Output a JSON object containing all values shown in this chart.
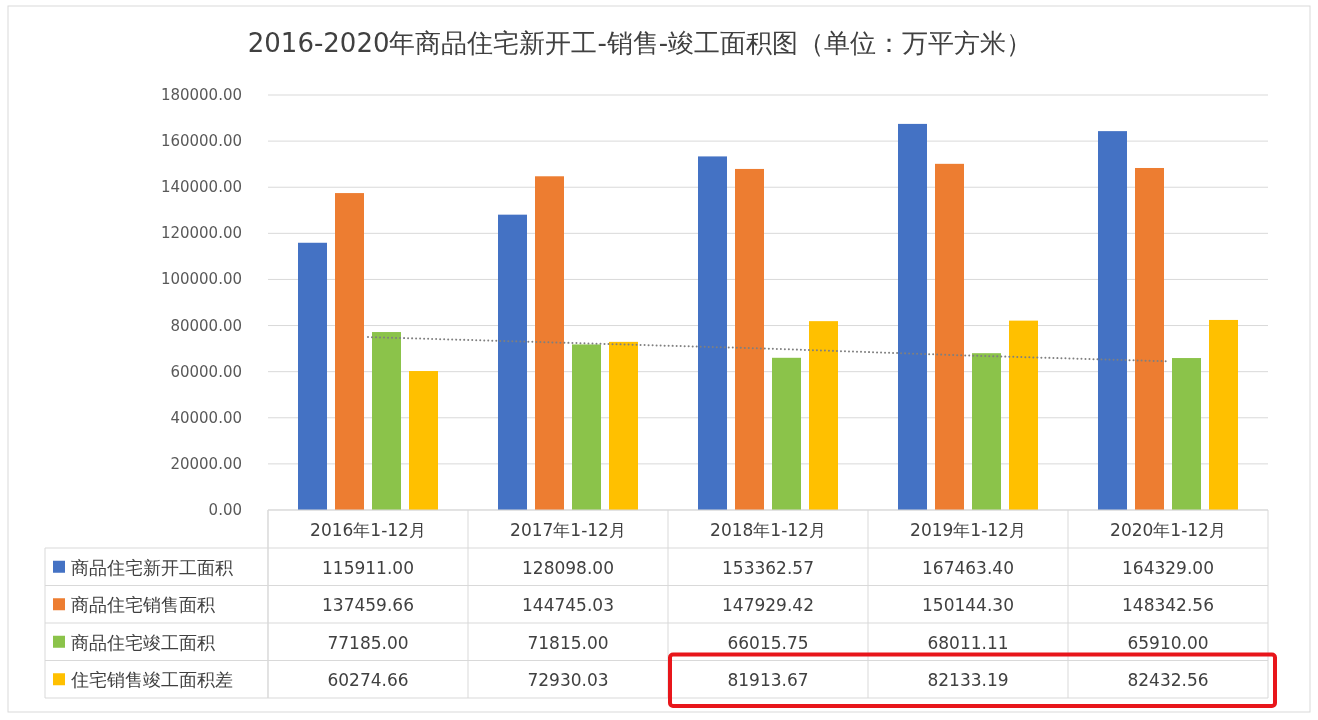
{
  "chart_data": {
    "type": "bar",
    "title": "2016-2020年商品住宅新开工-销售-竣工面积图（单位：万平方米）",
    "categories": [
      "2016年1-12月",
      "2017年1-12月",
      "2018年1-12月",
      "2019年1-12月",
      "2020年1-12月"
    ],
    "series": [
      {
        "name": "商品住宅新开工面积",
        "color": "#4472c4",
        "values": [
          115911.0,
          128098.0,
          153362.57,
          167463.4,
          164329.0
        ],
        "value_labels": [
          "115911.00",
          "128098.00",
          "153362.57",
          "167463.40",
          "164329.00"
        ]
      },
      {
        "name": "商品住宅销售面积",
        "color": "#ed7d31",
        "values": [
          137459.66,
          144745.03,
          147929.42,
          150144.3,
          148342.56
        ],
        "value_labels": [
          "137459.66",
          "144745.03",
          "147929.42",
          "150144.30",
          "148342.56"
        ]
      },
      {
        "name": "商品住宅竣工面积",
        "color": "#8bc34a",
        "values": [
          77185.0,
          71815.0,
          66015.75,
          68011.11,
          65910.0
        ],
        "value_labels": [
          "77185.00",
          "71815.00",
          "66015.75",
          "68011.11",
          "65910.00"
        ]
      },
      {
        "name": "住宅销售竣工面积差",
        "color": "#ffc000",
        "values": [
          60274.66,
          72930.03,
          81913.67,
          82133.19,
          82432.56
        ],
        "value_labels": [
          "60274.66",
          "72930.03",
          "81913.67",
          "82133.19",
          "82432.56"
        ]
      },
      {
        "type": "line",
        "color": "#7f7f7f",
        "line_style": "dotted",
        "values": [
          75000,
          72500,
          70000,
          67000,
          64500
        ]
      }
    ],
    "ylim": [
      0,
      180000
    ],
    "yticks": [
      {
        "value": 0,
        "label": "0.00"
      },
      {
        "value": 20000,
        "label": "20000.00"
      },
      {
        "value": 40000,
        "label": "40000.00"
      },
      {
        "value": 60000,
        "label": "60000.00"
      },
      {
        "value": 80000,
        "label": "80000.00"
      },
      {
        "value": 100000,
        "label": "100000.00"
      },
      {
        "value": 120000,
        "label": "120000.00"
      },
      {
        "value": 140000,
        "label": "140000.00"
      },
      {
        "value": 160000,
        "label": "160000.00"
      },
      {
        "value": 180000,
        "label": "180000.00"
      }
    ],
    "grid": "y",
    "legend": "bottom"
  }
}
